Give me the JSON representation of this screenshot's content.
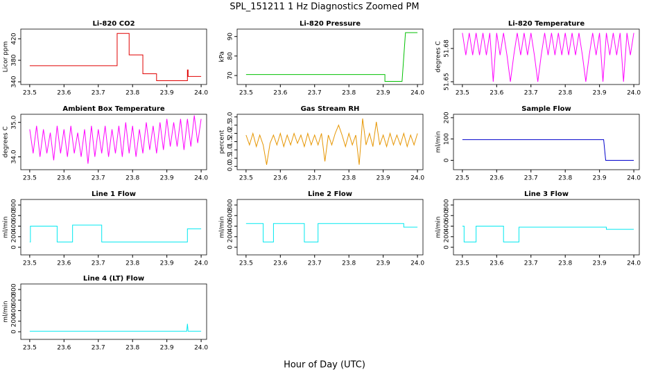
{
  "page": {
    "title": "SPL_151211  1 Hz Diagnostics Zoomed PM",
    "xlabel": "Hour of Day (UTC)"
  },
  "chart_data": [
    {
      "type": "line",
      "title": "Li-820 CO2",
      "ylabel": "Licor ppm",
      "color": "#e00000",
      "x": [
        23.5,
        23.755,
        23.755,
        23.79,
        23.79,
        23.83,
        23.83,
        23.87,
        23.87,
        23.96,
        23.96,
        23.962,
        23.962,
        24.0
      ],
      "values": [
        370,
        370,
        430,
        430,
        390,
        390,
        355,
        355,
        342,
        342,
        362,
        362,
        350,
        350
      ],
      "xlim": [
        23.474,
        24.016
      ],
      "xticks": [
        23.5,
        23.6,
        23.7,
        23.8,
        23.9,
        {
          "value": 24,
          "label": "24.0"
        }
      ],
      "ylim": [
        335,
        438
      ],
      "yticks": [
        340,
        380,
        420
      ]
    },
    {
      "type": "line",
      "title": "Li-820 Pressure",
      "ylabel": "kPa",
      "color": "#00c000",
      "x": [
        23.5,
        23.905,
        23.905,
        23.955,
        23.965,
        24.0
      ],
      "values": [
        70.5,
        70.5,
        67,
        67,
        92,
        92
      ],
      "xlim": [
        23.474,
        24.016
      ],
      "xticks": [
        23.5,
        23.6,
        23.7,
        23.8,
        23.9,
        {
          "value": 24,
          "label": "24.0"
        }
      ],
      "ylim": [
        65.4,
        93.8
      ],
      "yticks": [
        70,
        80,
        90
      ]
    },
    {
      "type": "line",
      "title": "Li-820 Temperature",
      "ylabel": "degrees C",
      "color": "#ff00ff",
      "x": [
        23.5,
        23.51,
        23.52,
        23.53,
        23.54,
        23.55,
        23.56,
        23.57,
        23.58,
        23.59,
        23.6,
        23.61,
        23.62,
        23.63,
        23.64,
        23.65,
        23.66,
        23.67,
        23.68,
        23.69,
        23.7,
        23.71,
        23.72,
        23.73,
        23.74,
        23.75,
        23.76,
        23.77,
        23.78,
        23.79,
        23.8,
        23.81,
        23.82,
        23.83,
        23.84,
        23.85,
        23.86,
        23.87,
        23.88,
        23.89,
        23.9,
        23.91,
        23.92,
        23.93,
        23.94,
        23.95,
        23.96,
        23.97,
        23.98,
        23.99,
        24.0
      ],
      "values": [
        51.694,
        51.674,
        51.694,
        51.674,
        51.694,
        51.674,
        51.694,
        51.674,
        51.694,
        51.65,
        51.694,
        51.674,
        51.694,
        51.674,
        51.65,
        51.674,
        51.694,
        51.674,
        51.694,
        51.674,
        51.694,
        51.674,
        51.65,
        51.674,
        51.694,
        51.674,
        51.694,
        51.674,
        51.694,
        51.674,
        51.694,
        51.674,
        51.694,
        51.674,
        51.694,
        51.674,
        51.65,
        51.674,
        51.694,
        51.674,
        51.694,
        51.65,
        51.694,
        51.674,
        51.694,
        51.674,
        51.694,
        51.65,
        51.694,
        51.674,
        51.694
      ],
      "xlim": [
        23.474,
        24.016
      ],
      "xticks": [
        23.5,
        23.6,
        23.7,
        23.8,
        23.9,
        {
          "value": 24,
          "label": "24.0"
        }
      ],
      "ylim": [
        51.6475,
        51.6975
      ],
      "yticks": [
        51.65,
        51.68
      ]
    },
    {
      "type": "line",
      "title": "Ambient Box Temperature",
      "ylabel": "degrees C",
      "color": "#ff00ff",
      "x": [
        23.5,
        23.51,
        23.52,
        23.53,
        23.54,
        23.55,
        23.56,
        23.57,
        23.58,
        23.59,
        23.6,
        23.61,
        23.62,
        23.63,
        23.64,
        23.65,
        23.66,
        23.67,
        23.68,
        23.69,
        23.7,
        23.71,
        23.72,
        23.73,
        23.74,
        23.75,
        23.76,
        23.77,
        23.78,
        23.79,
        23.8,
        23.81,
        23.82,
        23.83,
        23.84,
        23.85,
        23.86,
        23.87,
        23.88,
        23.89,
        23.9,
        23.91,
        23.92,
        23.93,
        23.94,
        23.95,
        23.96,
        23.97,
        23.98,
        23.99,
        24.0
      ],
      "values": [
        34.8,
        34.1,
        34.9,
        34.0,
        34.8,
        34.1,
        34.7,
        33.9,
        34.9,
        34.1,
        34.8,
        34.0,
        34.9,
        34.1,
        34.7,
        34.0,
        34.8,
        33.8,
        34.9,
        34.0,
        34.8,
        34.1,
        34.9,
        34.0,
        34.8,
        34.1,
        34.9,
        34.0,
        35.0,
        34.1,
        34.9,
        34.0,
        34.8,
        34.1,
        35.0,
        34.2,
        34.9,
        34.1,
        35.0,
        34.2,
        35.1,
        34.3,
        35.0,
        34.3,
        35.1,
        34.2,
        35.1,
        34.3,
        35.2,
        34.4,
        35.1
      ],
      "xlim": [
        23.474,
        24.016
      ],
      "xticks": [
        23.5,
        23.6,
        23.7,
        23.8,
        23.9,
        {
          "value": 24,
          "label": "24.0"
        }
      ],
      "ylim": [
        33.627,
        35.235
      ],
      "yticks": [
        {
          "value": 34,
          "label": "34.0"
        },
        {
          "value": 35,
          "label": "35.0"
        }
      ]
    },
    {
      "type": "line",
      "title": "Gas Stream RH",
      "ylabel": "percent",
      "color": "#e69500",
      "x": [
        23.5,
        23.51,
        23.52,
        23.53,
        23.54,
        23.55,
        23.56,
        23.57,
        23.58,
        23.59,
        23.6,
        23.61,
        23.62,
        23.63,
        23.64,
        23.65,
        23.66,
        23.67,
        23.68,
        23.69,
        23.7,
        23.71,
        23.72,
        23.73,
        23.74,
        23.75,
        23.76,
        23.77,
        23.78,
        23.79,
        23.8,
        23.81,
        23.82,
        23.83,
        23.84,
        23.85,
        23.86,
        23.87,
        23.88,
        23.89,
        23.9,
        23.91,
        23.92,
        23.93,
        23.94,
        23.95,
        23.96,
        23.97,
        23.98,
        23.99,
        24.0
      ],
      "values": [
        1.9,
        1.3,
        2.0,
        1.2,
        1.9,
        1.3,
        0.1,
        1.4,
        1.9,
        1.3,
        2.0,
        1.2,
        1.9,
        1.3,
        2.0,
        1.4,
        1.9,
        1.2,
        2.0,
        1.3,
        1.9,
        1.3,
        2.0,
        0.3,
        1.9,
        1.3,
        2.0,
        2.5,
        1.9,
        1.2,
        2.0,
        1.3,
        1.9,
        0.1,
        2.9,
        1.3,
        2.0,
        1.2,
        2.7,
        1.3,
        1.9,
        1.2,
        2.0,
        1.3,
        1.9,
        1.3,
        2.0,
        1.2,
        1.9,
        1.3,
        2.0
      ],
      "xlim": [
        23.474,
        24.016
      ],
      "xticks": [
        23.5,
        23.6,
        23.7,
        23.8,
        23.9,
        {
          "value": 24,
          "label": "24.0"
        }
      ],
      "ylim": [
        -0.2,
        3.16
      ],
      "yticks": [
        {
          "value": 0,
          "label": "0.0"
        },
        0.5,
        {
          "value": 1,
          "label": "1.0"
        },
        1.5,
        {
          "value": 2,
          "label": "2.0"
        },
        2.5,
        {
          "value": 3,
          "label": "3.0"
        }
      ]
    },
    {
      "type": "line",
      "title": "Sample Flow",
      "ylabel": "ml/min",
      "color": "#0000cc",
      "x": [
        23.5,
        23.912,
        23.918,
        24.0
      ],
      "values": [
        97,
        97,
        0,
        0
      ],
      "xlim": [
        23.474,
        24.016
      ],
      "xticks": [
        23.5,
        23.6,
        23.7,
        23.8,
        23.9,
        {
          "value": 24,
          "label": "24.0"
        }
      ],
      "ylim": [
        -44,
        216
      ],
      "yticks": [
        0,
        100,
        200
      ]
    },
    {
      "type": "line",
      "title": "Line 1 Flow",
      "ylabel": "ml/min",
      "color": "#00e8f0",
      "x": [
        23.5,
        23.502,
        23.502,
        23.58,
        23.58,
        23.625,
        23.625,
        23.71,
        23.71,
        23.96,
        23.96,
        24.0
      ],
      "values": [
        100,
        100,
        400,
        400,
        100,
        100,
        420,
        420,
        100,
        100,
        350,
        350
      ],
      "xlim": [
        23.474,
        24.016
      ],
      "xticks": [
        23.5,
        23.6,
        23.7,
        23.8,
        23.9,
        {
          "value": 24,
          "label": "24.0"
        }
      ],
      "ylim": [
        -144,
        905
      ],
      "yticks": [
        0,
        200,
        400,
        600,
        800
      ]
    },
    {
      "type": "line",
      "title": "Line 2 Flow",
      "ylabel": "ml/min",
      "color": "#00e8f0",
      "x": [
        23.5,
        23.55,
        23.55,
        23.58,
        23.58,
        23.67,
        23.67,
        23.71,
        23.71,
        23.96,
        23.96,
        24.0
      ],
      "values": [
        450,
        450,
        100,
        100,
        450,
        450,
        100,
        100,
        450,
        450,
        380,
        380
      ],
      "xlim": [
        23.474,
        24.016
      ],
      "xticks": [
        23.5,
        23.6,
        23.7,
        23.8,
        23.9,
        {
          "value": 24,
          "label": "24.0"
        }
      ],
      "ylim": [
        -144,
        905
      ],
      "yticks": [
        0,
        200,
        400,
        600,
        800
      ]
    },
    {
      "type": "line",
      "title": "Line 3 Flow",
      "ylabel": "ml/min",
      "color": "#00e8f0",
      "x": [
        23.5,
        23.505,
        23.505,
        23.54,
        23.54,
        23.62,
        23.62,
        23.665,
        23.665,
        23.92,
        23.92,
        24.0
      ],
      "values": [
        400,
        400,
        100,
        100,
        400,
        400,
        100,
        100,
        380,
        380,
        340,
        340
      ],
      "xlim": [
        23.474,
        24.016
      ],
      "xticks": [
        23.5,
        23.6,
        23.7,
        23.8,
        23.9,
        {
          "value": 24,
          "label": "24.0"
        }
      ],
      "ylim": [
        -144,
        905
      ],
      "yticks": [
        0,
        200,
        400,
        600,
        800
      ]
    },
    {
      "type": "line",
      "title": "Line 4 (LT) Flow",
      "ylabel": "ml/min",
      "color": "#00e8f0",
      "x": [
        23.5,
        23.958,
        23.96,
        23.962,
        24.0
      ],
      "values": [
        10,
        10,
        150,
        10,
        10
      ],
      "xlim": [
        23.474,
        24.016
      ],
      "xticks": [
        23.5,
        23.6,
        23.7,
        23.8,
        23.9,
        {
          "value": 24,
          "label": "24.0"
        }
      ],
      "ylim": [
        -144,
        905
      ],
      "yticks": [
        0,
        200,
        400,
        600,
        800
      ]
    }
  ]
}
